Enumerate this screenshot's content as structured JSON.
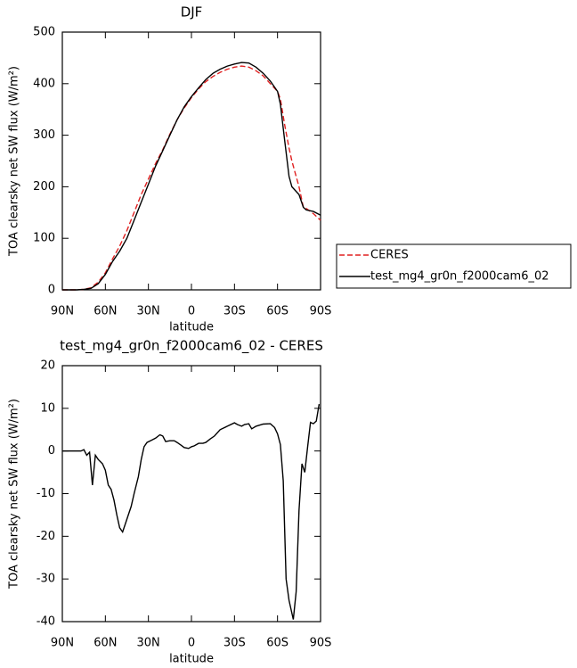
{
  "chart_data": [
    {
      "type": "line",
      "title": "DJF",
      "xlabel": "latitude",
      "ylabel": "TOA clearsky net SW flux (W/m²)",
      "x": [
        90,
        85,
        80,
        75,
        70,
        65,
        60,
        55,
        50,
        45,
        40,
        35,
        30,
        25,
        20,
        15,
        10,
        5,
        0,
        -5,
        -10,
        -15,
        -20,
        -25,
        -30,
        -35,
        -40,
        -45,
        -50,
        -55,
        -60,
        -62,
        -65,
        -68,
        -70,
        -75,
        -78,
        -80,
        -85,
        -90
      ],
      "series": [
        {
          "name": "CERES",
          "color": "#e02020",
          "dash": true,
          "values": [
            0,
            0,
            0,
            1,
            4,
            15,
            33,
            60,
            85,
            115,
            150,
            185,
            215,
            245,
            272,
            302,
            330,
            353,
            373,
            390,
            404,
            414,
            422,
            428,
            432,
            434,
            432,
            425,
            415,
            400,
            385,
            370,
            320,
            275,
            250,
            200,
            160,
            158,
            148,
            135
          ]
        },
        {
          "name": "test_mg4_gr0n_f2000cam6_02",
          "color": "#000000",
          "dash": false,
          "values": [
            0,
            0,
            0,
            1,
            3,
            12,
            30,
            55,
            75,
            100,
            135,
            170,
            205,
            240,
            270,
            300,
            330,
            355,
            375,
            392,
            408,
            420,
            428,
            434,
            438,
            441,
            440,
            432,
            420,
            405,
            385,
            360,
            290,
            220,
            200,
            185,
            160,
            155,
            152,
            145
          ]
        }
      ],
      "xlim": [
        90,
        -90
      ],
      "xticks": [
        {
          "value": 90,
          "label": "90N"
        },
        {
          "value": 60,
          "label": "60N"
        },
        {
          "value": 30,
          "label": "30N"
        },
        0,
        {
          "value": -30,
          "label": "30S"
        },
        {
          "value": -60,
          "label": "60S"
        },
        {
          "value": -90,
          "label": "90S"
        }
      ],
      "ylim": [
        0,
        500
      ],
      "yticks": [
        0,
        100,
        200,
        300,
        400,
        500
      ],
      "legend": "right"
    },
    {
      "type": "line",
      "title": "test_mg4_gr0n_f2000cam6_02 - CERES",
      "xlabel": "latitude",
      "ylabel": "TOA clearsky net SW flux (W/m²)",
      "x": [
        90,
        85,
        80,
        77,
        75,
        73,
        71,
        69,
        67,
        65,
        62,
        60,
        58,
        56,
        54,
        52,
        50,
        48,
        46,
        44,
        42,
        40,
        37,
        35,
        33,
        31,
        28,
        25,
        22,
        20,
        18,
        15,
        12,
        10,
        7,
        5,
        2,
        0,
        -2,
        -5,
        -8,
        -10,
        -13,
        -16,
        -20,
        -25,
        -30,
        -32,
        -35,
        -37,
        -40,
        -42,
        -45,
        -50,
        -55,
        -58,
        -60,
        -62,
        -64,
        -66,
        -68,
        -71,
        -73,
        -75,
        -77,
        -79,
        -81,
        -83,
        -85,
        -87,
        -89
      ],
      "series": [
        {
          "color": "#000000",
          "dash": false,
          "values": [
            0,
            0,
            0,
            0,
            0.3,
            -1,
            -0.3,
            -8,
            -1,
            -2,
            -3,
            -4.5,
            -8,
            -9,
            -11.5,
            -15,
            -18,
            -19,
            -17,
            -15,
            -13,
            -10,
            -6,
            -2,
            1,
            2,
            2.5,
            3,
            3.8,
            3.5,
            2.2,
            2.4,
            2.4,
            2,
            1.3,
            0.8,
            0.6,
            1,
            1.2,
            1.8,
            1.8,
            2,
            2.8,
            3.5,
            5,
            5.8,
            6.6,
            6.2,
            5.8,
            6.2,
            6.4,
            5.2,
            5.8,
            6.3,
            6.4,
            5.5,
            4,
            1.5,
            -7,
            -30,
            -35,
            -39.5,
            -33,
            -14,
            -3,
            -5,
            1,
            6.7,
            6.4,
            7,
            11
          ]
        }
      ],
      "xlim": [
        90,
        -90
      ],
      "xticks": [
        {
          "value": 90,
          "label": "90N"
        },
        {
          "value": 60,
          "label": "60N"
        },
        {
          "value": 30,
          "label": "30N"
        },
        0,
        {
          "value": -30,
          "label": "30S"
        },
        {
          "value": -60,
          "label": "60S"
        },
        {
          "value": -90,
          "label": "90S"
        }
      ],
      "ylim": [
        -40,
        20
      ],
      "yticks": [
        -40,
        -30,
        -20,
        -10,
        0,
        10,
        20
      ]
    }
  ]
}
